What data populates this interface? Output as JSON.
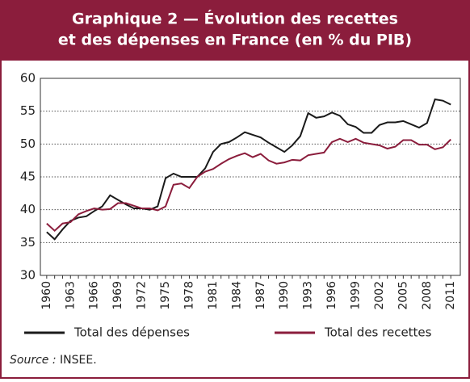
{
  "chart_data": {
    "type": "line",
    "title": [
      "Graphique 2 — Évolution des recettes",
      "et des dépenses en France (en % du PIB)"
    ],
    "x": [
      1960,
      1961,
      1962,
      1963,
      1964,
      1965,
      1966,
      1967,
      1968,
      1969,
      1970,
      1971,
      1972,
      1973,
      1974,
      1975,
      1976,
      1977,
      1978,
      1979,
      1980,
      1981,
      1982,
      1983,
      1984,
      1985,
      1986,
      1987,
      1988,
      1989,
      1990,
      1991,
      1992,
      1993,
      1994,
      1995,
      1996,
      1997,
      1998,
      1999,
      2000,
      2001,
      2002,
      2003,
      2004,
      2005,
      2006,
      2007,
      2008,
      2009,
      2010,
      2011
    ],
    "series": [
      {
        "name": "Total des dépenses",
        "color": "#1a1a1a",
        "values": [
          36.6,
          35.5,
          37.0,
          38.3,
          38.8,
          39.0,
          39.8,
          40.5,
          42.2,
          41.5,
          40.8,
          40.2,
          40.2,
          40.0,
          40.5,
          44.8,
          45.5,
          45.0,
          45.0,
          45.0,
          46.3,
          48.8,
          50.0,
          50.3,
          51.0,
          51.8,
          51.4,
          51.0,
          50.2,
          49.5,
          48.8,
          49.8,
          51.2,
          54.7,
          54.0,
          54.2,
          54.8,
          54.3,
          53.0,
          52.6,
          51.7,
          51.7,
          52.9,
          53.3,
          53.3,
          53.5,
          53.0,
          52.5,
          53.2,
          56.8,
          56.6,
          56.0
        ]
      },
      {
        "name": "Total des recettes",
        "color": "#8b1d3c",
        "values": [
          37.9,
          36.8,
          37.9,
          38.1,
          39.3,
          39.8,
          40.2,
          40.0,
          40.1,
          41.0,
          41.0,
          40.6,
          40.2,
          40.2,
          39.9,
          40.5,
          43.8,
          44.0,
          43.3,
          45.0,
          45.8,
          46.2,
          47.0,
          47.7,
          48.2,
          48.6,
          48.0,
          48.5,
          47.5,
          47.0,
          47.2,
          47.6,
          47.5,
          48.3,
          48.5,
          48.7,
          50.3,
          50.8,
          50.3,
          50.8,
          50.2,
          50.0,
          49.8,
          49.3,
          49.6,
          50.6,
          50.6,
          49.9,
          49.9,
          49.2,
          49.5,
          50.7
        ]
      }
    ],
    "xlim": [
      1959.2,
      2012.2
    ],
    "xticks": [
      1960,
      1963,
      1966,
      1969,
      1972,
      1975,
      1978,
      1981,
      1984,
      1987,
      1990,
      1993,
      1996,
      1999,
      2002,
      2005,
      2008,
      2011
    ],
    "ylim": [
      30,
      60
    ],
    "yticks": [
      30,
      35,
      40,
      45,
      50,
      55,
      60
    ],
    "grid": true,
    "source_label": "Source :",
    "source": "INSEE."
  }
}
